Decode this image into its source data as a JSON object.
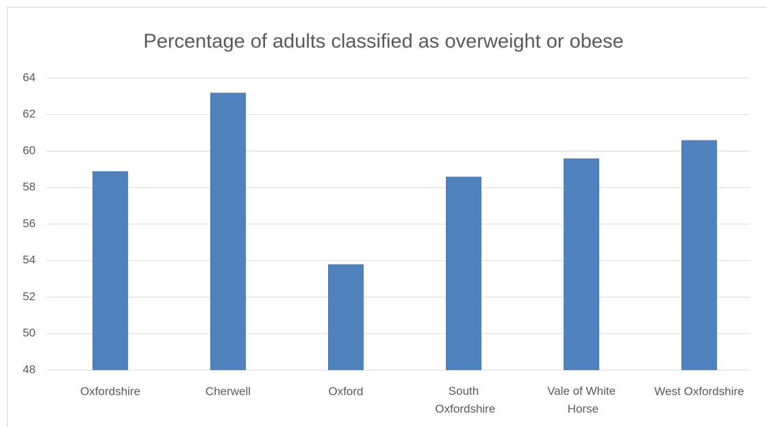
{
  "chart_data": {
    "type": "bar",
    "title": "Percentage of adults classified as overweight or obese",
    "categories": [
      "Oxfordshire",
      "Cherwell",
      "Oxford",
      "South Oxfordshire",
      "Vale of White Horse",
      "West Oxfordshire"
    ],
    "values": [
      58.9,
      63.2,
      53.8,
      58.6,
      59.6,
      60.6
    ],
    "color": "#4f81bd",
    "ylim": [
      48,
      64
    ],
    "yticks": [
      48,
      50,
      52,
      54,
      56,
      58,
      60,
      62,
      64
    ],
    "grid": true
  }
}
